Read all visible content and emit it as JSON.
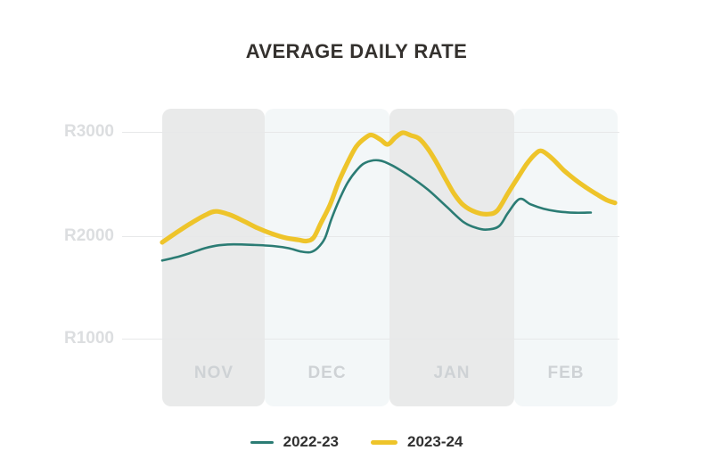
{
  "chart_data": {
    "type": "line",
    "title": "AVERAGE DAILY RATE",
    "x_categories": [
      "NOV",
      "DEC",
      "JAN",
      "FEB"
    ],
    "shaded_month_bands": [
      "NOV",
      "JAN"
    ],
    "yticks": [
      {
        "label": "R3000",
        "value": 3000
      },
      {
        "label": "R2000",
        "value": 2000
      },
      {
        "label": "R1000",
        "value": 1000
      }
    ],
    "ylim": [
      1000,
      3000
    ],
    "currency_prefix": "R",
    "grid": "horizontal-only",
    "legend_position": "bottom-center",
    "series": [
      {
        "name": "2022-23",
        "color": "#2b7c74",
        "stroke_width": 2.6,
        "points": [
          [
            0.0,
            1770
          ],
          [
            0.03,
            1800
          ],
          [
            0.062,
            1842
          ],
          [
            0.094,
            1888
          ],
          [
            0.125,
            1917
          ],
          [
            0.157,
            1925
          ],
          [
            0.2,
            1920
          ],
          [
            0.243,
            1910
          ],
          [
            0.278,
            1888
          ],
          [
            0.306,
            1856
          ],
          [
            0.326,
            1850
          ],
          [
            0.342,
            1890
          ],
          [
            0.358,
            1985
          ],
          [
            0.372,
            2165
          ],
          [
            0.39,
            2360
          ],
          [
            0.408,
            2520
          ],
          [
            0.428,
            2640
          ],
          [
            0.447,
            2712
          ],
          [
            0.476,
            2735
          ],
          [
            0.506,
            2685
          ],
          [
            0.545,
            2580
          ],
          [
            0.584,
            2455
          ],
          [
            0.624,
            2295
          ],
          [
            0.663,
            2140
          ],
          [
            0.692,
            2082
          ],
          [
            0.714,
            2068
          ],
          [
            0.741,
            2100
          ],
          [
            0.761,
            2230
          ],
          [
            0.786,
            2362
          ],
          [
            0.81,
            2312
          ],
          [
            0.839,
            2268
          ],
          [
            0.869,
            2243
          ],
          [
            0.908,
            2230
          ],
          [
            0.943,
            2232
          ]
        ]
      },
      {
        "name": "2023-24",
        "color": "#eec42a",
        "stroke_width": 5.2,
        "points": [
          [
            0.0,
            1945
          ],
          [
            0.03,
            2035
          ],
          [
            0.062,
            2125
          ],
          [
            0.094,
            2205
          ],
          [
            0.118,
            2243
          ],
          [
            0.149,
            2210
          ],
          [
            0.18,
            2148
          ],
          [
            0.21,
            2082
          ],
          [
            0.24,
            2030
          ],
          [
            0.27,
            1990
          ],
          [
            0.3,
            1968
          ],
          [
            0.317,
            1958
          ],
          [
            0.333,
            1990
          ],
          [
            0.349,
            2130
          ],
          [
            0.369,
            2305
          ],
          [
            0.388,
            2525
          ],
          [
            0.408,
            2715
          ],
          [
            0.427,
            2868
          ],
          [
            0.447,
            2952
          ],
          [
            0.461,
            2978
          ],
          [
            0.48,
            2935
          ],
          [
            0.496,
            2888
          ],
          [
            0.513,
            2955
          ],
          [
            0.529,
            3000
          ],
          [
            0.547,
            2975
          ],
          [
            0.565,
            2945
          ],
          [
            0.584,
            2850
          ],
          [
            0.604,
            2710
          ],
          [
            0.624,
            2550
          ],
          [
            0.643,
            2408
          ],
          [
            0.663,
            2302
          ],
          [
            0.69,
            2235
          ],
          [
            0.716,
            2216
          ],
          [
            0.737,
            2250
          ],
          [
            0.761,
            2420
          ],
          [
            0.782,
            2565
          ],
          [
            0.802,
            2700
          ],
          [
            0.82,
            2792
          ],
          [
            0.835,
            2825
          ],
          [
            0.859,
            2748
          ],
          [
            0.882,
            2645
          ],
          [
            0.908,
            2550
          ],
          [
            0.933,
            2472
          ],
          [
            0.957,
            2405
          ],
          [
            0.978,
            2352
          ],
          [
            0.996,
            2325
          ]
        ]
      }
    ]
  }
}
